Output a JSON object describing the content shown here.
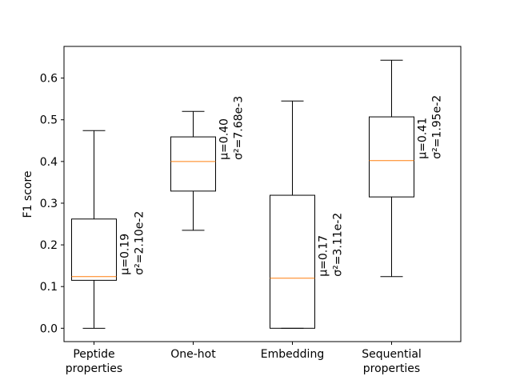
{
  "chart_data": {
    "type": "boxplot",
    "title": "",
    "xlabel": "",
    "ylabel": "F1 score",
    "ylim": [
      -0.032,
      0.676
    ],
    "yticks": [
      0.0,
      0.1,
      0.2,
      0.3,
      0.4,
      0.5,
      0.6
    ],
    "ytick_labels": [
      "0.0",
      "0.1",
      "0.2",
      "0.3",
      "0.4",
      "0.5",
      "0.6"
    ],
    "categories": [
      [
        "Peptide",
        "properties"
      ],
      [
        "One-hot"
      ],
      [
        "Embedding"
      ],
      [
        "Sequential",
        "properties"
      ]
    ],
    "boxes": [
      {
        "whisker_low": 0.0,
        "q1": 0.115,
        "median": 0.124,
        "q3": 0.262,
        "whisker_high": 0.474,
        "mean_label": "μ=0.19",
        "var_label": "σ²=2.10e-2"
      },
      {
        "whisker_low": 0.235,
        "q1": 0.329,
        "median": 0.4,
        "q3": 0.459,
        "whisker_high": 0.52,
        "mean_label": "μ=0.40",
        "var_label": "σ²=7.68e-3"
      },
      {
        "whisker_low": 0.0,
        "q1": 0.0,
        "median": 0.12,
        "q3": 0.319,
        "whisker_high": 0.545,
        "mean_label": "μ=0.17",
        "var_label": "σ²=3.11e-2"
      },
      {
        "whisker_low": 0.124,
        "q1": 0.315,
        "median": 0.402,
        "q3": 0.507,
        "whisker_high": 0.643,
        "mean_label": "μ=0.41",
        "var_label": "σ²=1.95e-2"
      }
    ],
    "colors": {
      "box": "#000000",
      "median": "#ff7f0e"
    },
    "grid": false,
    "legend": "none"
  }
}
